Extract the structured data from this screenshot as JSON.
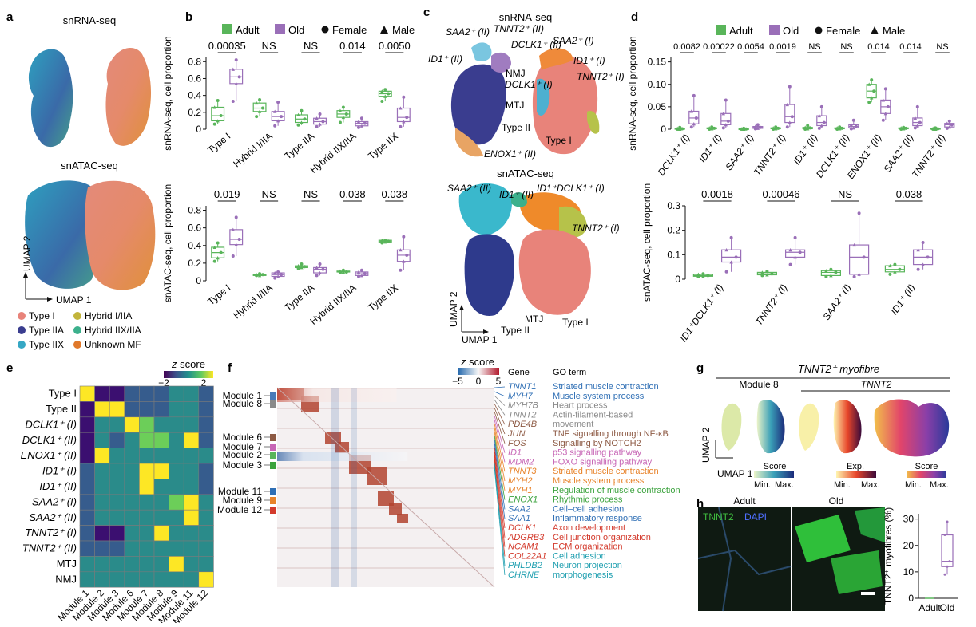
{
  "panel_letters": {
    "a": "a",
    "b": "b",
    "c": "c",
    "d": "d",
    "e": "e",
    "f": "f",
    "g": "g",
    "h": "h"
  },
  "panel_a": {
    "title_rna": "snRNA-seq",
    "title_atac": "snATAC-seq",
    "axis_x": "UMAP 1",
    "axis_y": "UMAP 2",
    "legend": [
      {
        "label": "Type I",
        "color": "#e8837a"
      },
      {
        "label": "Hybrid I/IIA",
        "color": "#c2b43a"
      },
      {
        "label": "Type IIA",
        "color": "#3a3d8f"
      },
      {
        "label": "Hybrid IIX/IIA",
        "color": "#3cb08c"
      },
      {
        "label": "Type IIX",
        "color": "#36a7c4"
      },
      {
        "label": "Unknown MF",
        "color": "#e0782a"
      }
    ]
  },
  "legend_bd": {
    "adult": "Adult",
    "old": "Old",
    "female": "Female",
    "male": "Male",
    "adult_color": "#59b55a",
    "old_color": "#9a6fb8"
  },
  "chart_data": [
    {
      "id": "b-top",
      "type": "box",
      "ylabel": "snRNA-seq, cell proportion",
      "ylim": [
        0,
        0.85
      ],
      "yticks": [
        "0",
        "0.2",
        "0.4",
        "0.6",
        "0.8"
      ],
      "ytick_values": [
        0,
        0.2,
        0.4,
        0.6,
        0.8
      ],
      "categories": [
        "Type I",
        "Hybrid I/IIA",
        "Type IIA",
        "Hybrid IIX/IIA",
        "Type IIX"
      ],
      "pvalues": [
        "0.00035",
        "NS",
        "NS",
        "0.014",
        "0.0050"
      ],
      "series": [
        {
          "name": "Adult",
          "boxes": [
            [
              0.06,
              0.1,
              0.16,
              0.26,
              0.34
            ],
            [
              0.15,
              0.21,
              0.25,
              0.31,
              0.35
            ],
            [
              0.05,
              0.08,
              0.12,
              0.17,
              0.22
            ],
            [
              0.08,
              0.14,
              0.18,
              0.22,
              0.26
            ],
            [
              0.33,
              0.39,
              0.42,
              0.45,
              0.47
            ]
          ]
        },
        {
          "name": "Old",
          "boxes": [
            [
              0.33,
              0.54,
              0.62,
              0.71,
              0.82
            ],
            [
              0.04,
              0.1,
              0.15,
              0.21,
              0.32
            ],
            [
              0.03,
              0.06,
              0.09,
              0.13,
              0.18
            ],
            [
              0.02,
              0.04,
              0.07,
              0.09,
              0.13
            ],
            [
              0.03,
              0.09,
              0.14,
              0.25,
              0.38
            ]
          ]
        }
      ]
    },
    {
      "id": "b-bottom",
      "type": "box",
      "ylabel": "snATAC-seq, cell proportion",
      "ylim": [
        0,
        0.85
      ],
      "yticks": [
        "0",
        "0.2",
        "0.4",
        "0.6",
        "0.8"
      ],
      "ytick_values": [
        0,
        0.2,
        0.4,
        0.6,
        0.8
      ],
      "categories": [
        "Type I",
        "Hybrid I/IIA",
        "Type IIA",
        "Hybrid IIX/IIA",
        "Type IIX"
      ],
      "pvalues": [
        "0.019",
        "NS",
        "NS",
        "0.038",
        "0.038"
      ],
      "series": [
        {
          "name": "Adult",
          "boxes": [
            [
              0.22,
              0.26,
              0.32,
              0.38,
              0.43
            ],
            [
              0.06,
              0.06,
              0.07,
              0.07,
              0.08
            ],
            [
              0.14,
              0.15,
              0.16,
              0.17,
              0.19
            ],
            [
              0.09,
              0.1,
              0.1,
              0.11,
              0.12
            ],
            [
              0.43,
              0.44,
              0.45,
              0.46,
              0.46
            ]
          ]
        },
        {
          "name": "Old",
          "boxes": [
            [
              0.28,
              0.41,
              0.47,
              0.58,
              0.72
            ],
            [
              0.03,
              0.05,
              0.07,
              0.09,
              0.1
            ],
            [
              0.06,
              0.09,
              0.13,
              0.15,
              0.19
            ],
            [
              0.05,
              0.06,
              0.08,
              0.1,
              0.12
            ],
            [
              0.12,
              0.22,
              0.29,
              0.35,
              0.5
            ]
          ]
        }
      ]
    },
    {
      "id": "d-top",
      "type": "box",
      "ylabel": "snRNA-seq, cell proportion",
      "ylim": [
        0,
        0.16
      ],
      "yticks": [
        "0",
        "0.05",
        "0.10",
        "0.15"
      ],
      "ytick_values": [
        0,
        0.05,
        0.1,
        0.15
      ],
      "categories": [
        "DCLK1⁺ (I)",
        "ID1⁺ (I)",
        "SAA2⁺ (I)",
        "TNNT2⁺ (I)",
        "ID1⁺ (II)",
        "DCLK1⁺ (II)",
        "ENOX1⁺ (II)",
        "SAA2⁺ (II)",
        "TNNT2⁺ (II)"
      ],
      "pvalues": [
        "0.0082",
        "0.00022",
        "0.0054",
        "0.0019",
        "NS",
        "NS",
        "0.014",
        "0.014",
        "NS"
      ],
      "series": [
        {
          "name": "Adult",
          "boxes": [
            [
              0,
              0,
              0.001,
              0.002,
              0.004
            ],
            [
              0,
              0.001,
              0.002,
              0.003,
              0.005
            ],
            [
              0,
              0,
              0.0005,
              0.001,
              0.002
            ],
            [
              0,
              0.001,
              0.002,
              0.003,
              0.005
            ],
            [
              0,
              0.001,
              0.003,
              0.004,
              0.008
            ],
            [
              0,
              0.001,
              0.002,
              0.003,
              0.005
            ],
            [
              0.06,
              0.07,
              0.085,
              0.1,
              0.11
            ],
            [
              0,
              0.001,
              0.002,
              0.003,
              0.004
            ],
            [
              0,
              0,
              0.001,
              0.002,
              0.003
            ]
          ]
        },
        {
          "name": "Old",
          "boxes": [
            [
              0.005,
              0.012,
              0.025,
              0.04,
              0.075
            ],
            [
              0.003,
              0.01,
              0.018,
              0.035,
              0.065
            ],
            [
              0.001,
              0.002,
              0.004,
              0.006,
              0.01
            ],
            [
              0.005,
              0.015,
              0.028,
              0.055,
              0.095
            ],
            [
              0.002,
              0.008,
              0.015,
              0.03,
              0.05
            ],
            [
              0.001,
              0.003,
              0.006,
              0.01,
              0.02
            ],
            [
              0.02,
              0.035,
              0.05,
              0.065,
              0.09
            ],
            [
              0.003,
              0.008,
              0.015,
              0.025,
              0.05
            ],
            [
              0.002,
              0.005,
              0.01,
              0.013,
              0.018
            ]
          ]
        }
      ]
    },
    {
      "id": "d-bottom",
      "type": "box",
      "ylabel": "snATAC-seq, cell proportion",
      "ylim": [
        0,
        0.3
      ],
      "yticks": [
        "0",
        "0.1",
        "0.2",
        "0.3"
      ],
      "ytick_values": [
        0,
        0.1,
        0.2,
        0.3
      ],
      "categories": [
        "ID1⁺DCLK1⁺ (I)",
        "TNNT2⁺ (I)",
        "SAA2⁺ (I)",
        "ID1⁺ (II)"
      ],
      "pvalues": [
        "0.0018",
        "0.00046",
        "NS",
        "0.038"
      ],
      "series": [
        {
          "name": "Adult",
          "boxes": [
            [
              0.01,
              0.012,
              0.015,
              0.02,
              0.022
            ],
            [
              0.015,
              0.018,
              0.022,
              0.028,
              0.032
            ],
            [
              0.01,
              0.015,
              0.028,
              0.035,
              0.04
            ],
            [
              0.02,
              0.03,
              0.04,
              0.055,
              0.06
            ]
          ]
        },
        {
          "name": "Old",
          "boxes": [
            [
              0.03,
              0.07,
              0.09,
              0.12,
              0.17
            ],
            [
              0.06,
              0.09,
              0.11,
              0.12,
              0.17
            ],
            [
              0.01,
              0.02,
              0.09,
              0.14,
              0.27
            ],
            [
              0.04,
              0.06,
              0.09,
              0.12,
              0.15
            ]
          ]
        }
      ]
    },
    {
      "id": "h-box",
      "type": "box",
      "ylabel": "TNNT2⁺ myofibres (%)",
      "ylim": [
        0,
        32
      ],
      "yticks": [
        "0",
        "10",
        "20",
        "30"
      ],
      "ytick_values": [
        0,
        10,
        20,
        30
      ],
      "categories": [
        "Adult",
        "Old"
      ],
      "values": {
        "Adult": [
          0,
          0,
          0,
          0,
          0
        ],
        "Old": [
          9,
          12,
          14,
          24,
          29
        ]
      }
    },
    {
      "id": "e-heatmap",
      "type": "heatmap",
      "title": "z score",
      "scale_labels": [
        "−2",
        "2"
      ],
      "rows": [
        "Type I",
        "Type II",
        "DCLK1⁺ (I)",
        "DCLK1⁺ (II)",
        "ENOX1⁺ (II)",
        "ID1⁺ (I)",
        "ID1⁺ (II)",
        "SAA2⁺ (I)",
        "SAA2⁺ (II)",
        "TNNT2⁺ (I)",
        "TNNT2⁺ (II)",
        "MTJ",
        "NMJ"
      ],
      "columns": [
        "Module 1",
        "Module 2",
        "Module 3",
        "Module 6",
        "Module 7",
        "Module 8",
        "Module 9",
        "Module 11",
        "Module 12"
      ],
      "values": [
        [
          2,
          -2,
          -2,
          -1,
          -1,
          -1,
          0,
          0,
          -1
        ],
        [
          -2,
          2,
          2,
          -1,
          -1,
          -1,
          0,
          0,
          -1
        ],
        [
          -2,
          0,
          0,
          2,
          1,
          0,
          0,
          0,
          -1
        ],
        [
          -2,
          0,
          -1,
          0,
          1,
          1,
          0,
          2,
          -1
        ],
        [
          -2,
          2,
          0,
          0,
          0,
          0,
          0,
          0,
          0
        ],
        [
          -1,
          0,
          0,
          0,
          2,
          2,
          0,
          0,
          -1
        ],
        [
          -1,
          0,
          0,
          0,
          2,
          0,
          0,
          0,
          -1
        ],
        [
          -1,
          0,
          0,
          0,
          0,
          0,
          1,
          2,
          0
        ],
        [
          -1,
          0,
          0,
          0,
          0,
          0,
          0,
          2,
          0
        ],
        [
          -1,
          -2,
          -2,
          0,
          0,
          2,
          0,
          0,
          0
        ],
        [
          -1,
          -1,
          -1,
          0,
          0,
          0,
          0,
          0,
          0
        ],
        [
          0,
          0,
          0,
          0,
          0,
          0,
          2,
          0,
          0
        ],
        [
          0,
          0,
          0,
          0,
          0,
          0,
          0,
          0,
          2
        ]
      ]
    }
  ],
  "panel_c": {
    "title_rna": "snRNA-seq",
    "title_atac": "snATAC-seq",
    "axis_x": "UMAP 1",
    "axis_y": "UMAP 2",
    "labels_rna": [
      "SAA2⁺ (II)",
      "TNNT2⁺ (II)",
      "SAA2⁺ (I)",
      "DCLK1⁺ (II)",
      "ID1⁺ (II)",
      "NMJ",
      "ID1⁺ (I)",
      "DCLK1⁺ (I)",
      "TNNT2⁺ (I)",
      "MTJ",
      "Type II",
      "Type I",
      "ENOX1⁺ (II)"
    ],
    "labels_atac": [
      "SAA2⁺ (II)",
      "ID1⁺ (II)",
      "ID1⁺DCLK1⁺ (I)",
      "TNNT2⁺ (I)",
      "Type II",
      "MTJ",
      "Type I"
    ]
  },
  "panel_f": {
    "scale_title": "z score",
    "scale_ticks": [
      "−5",
      "0",
      "5"
    ],
    "gene_header": "Gene",
    "go_header": "GO term",
    "modules": [
      "Module 1",
      "Module 8",
      "Module 6",
      "Module 7",
      "Module 2",
      "Module 3",
      "Module 11",
      "Module 9",
      "Module 12"
    ],
    "genes": [
      {
        "name": "TNNT1",
        "color": "#2f6fb5"
      },
      {
        "name": "MYH7",
        "color": "#2f6fb5"
      },
      {
        "name": "MYH7B",
        "color": "#8a8a8a"
      },
      {
        "name": "TNNT2",
        "color": "#8a8a8a"
      },
      {
        "name": "PDE4B",
        "color": "#8d5a44"
      },
      {
        "name": "JUN",
        "color": "#8d5a44"
      },
      {
        "name": "FOS",
        "color": "#8d5a44"
      },
      {
        "name": "ID1",
        "color": "#c765b5"
      },
      {
        "name": "MDM2",
        "color": "#c765b5"
      },
      {
        "name": "TNNT3",
        "color": "#e8832a"
      },
      {
        "name": "MYH2",
        "color": "#e8832a"
      },
      {
        "name": "MYH1",
        "color": "#e8832a"
      },
      {
        "name": "ENOX1",
        "color": "#3aa23c"
      },
      {
        "name": "SAA2",
        "color": "#2f6fb5"
      },
      {
        "name": "SAA1",
        "color": "#2f6fb5"
      },
      {
        "name": "DCLK1",
        "color": "#d33a2c"
      },
      {
        "name": "ADGRB3",
        "color": "#d33a2c"
      },
      {
        "name": "NCAM1",
        "color": "#d33a2c"
      },
      {
        "name": "COL22A1",
        "color": "#d33a2c"
      },
      {
        "name": "PHLDB2",
        "color": "#1f9fb0"
      },
      {
        "name": "CHRNE",
        "color": "#1f9fb0"
      }
    ],
    "go_terms": [
      {
        "text": "Striated muscle contraction",
        "color": "#2f6fb5"
      },
      {
        "text": "Muscle system process",
        "color": "#2f6fb5"
      },
      {
        "text": "Heart process",
        "color": "#8a8a8a"
      },
      {
        "text": "Actin-filament-based",
        "color": "#8a8a8a"
      },
      {
        "text": "movement",
        "color": "#8a8a8a"
      },
      {
        "text": "TNF signalling through NF-κB",
        "color": "#8d5a44"
      },
      {
        "text": "Signalling by NOTCH2",
        "color": "#8d5a44"
      },
      {
        "text": "p53 signalling pathway",
        "color": "#c765b5"
      },
      {
        "text": "FOXO signalling pathway",
        "color": "#c765b5"
      },
      {
        "text": "Striated muscle contraction",
        "color": "#e8832a"
      },
      {
        "text": "Muscle system process",
        "color": "#e8832a"
      },
      {
        "text": "Regulation of muscle contraction",
        "color": "#3aa23c"
      },
      {
        "text": "Rhythmic process",
        "color": "#3aa23c"
      },
      {
        "text": "Cell–cell adhesion",
        "color": "#2f6fb5"
      },
      {
        "text": "Inflammatory response",
        "color": "#2f6fb5"
      },
      {
        "text": "Axon development",
        "color": "#d33a2c"
      },
      {
        "text": "Cell junction organization",
        "color": "#d33a2c"
      },
      {
        "text": "ECM organization",
        "color": "#d33a2c"
      },
      {
        "text": "Cell adhesion",
        "color": "#1f9fb0"
      },
      {
        "text": "Neuron projection",
        "color": "#1f9fb0"
      },
      {
        "text": "morphogenesis",
        "color": "#1f9fb0"
      }
    ]
  },
  "panel_g": {
    "title": "TNNT2⁺ myofibre",
    "sub1": "Module 8",
    "sub2": "TNNT2",
    "axis_x": "UMAP 1",
    "axis_y": "UMAP 2",
    "scale1": "Score",
    "scale2": "Exp.",
    "scale3": "Score",
    "min": "Min.",
    "max": "Max."
  },
  "panel_h": {
    "adult": "Adult",
    "old": "Old",
    "stain1": "TNNT2",
    "stain2": "DAPI"
  }
}
